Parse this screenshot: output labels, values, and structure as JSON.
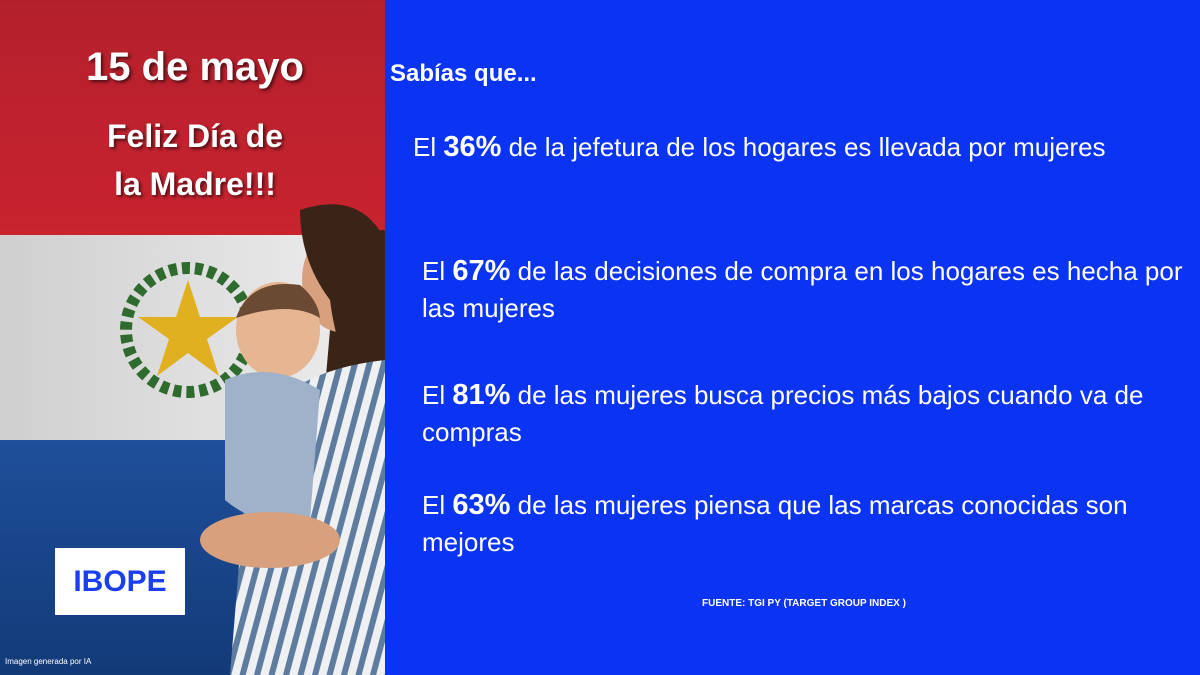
{
  "left_panel": {
    "date": "15 de mayo",
    "greeting": "Feliz Día de la Madre!!!",
    "logo": "IBOPE",
    "image_note": "Imagen generada por IA"
  },
  "right_panel": {
    "heading": "Sabías que...",
    "facts": [
      {
        "lead": "El",
        "highlight": "36%",
        "text": "de la jefetura de los hogares es llevada por mujeres"
      },
      {
        "lead": "El",
        "highlight": "67%",
        "text": "de las decisiones de compra en los hogares es hecha por las mujeres"
      },
      {
        "lead": "El",
        "highlight": "81%",
        "text": "de las mujeres busca precios más bajos cuando va de compras"
      },
      {
        "lead": "El",
        "highlight": "63%",
        "text": "de las mujeres piensa que las marcas conocidas son mejores"
      }
    ],
    "source": "FUENTE: TGI PY (TARGET GROUP INDEX )"
  }
}
